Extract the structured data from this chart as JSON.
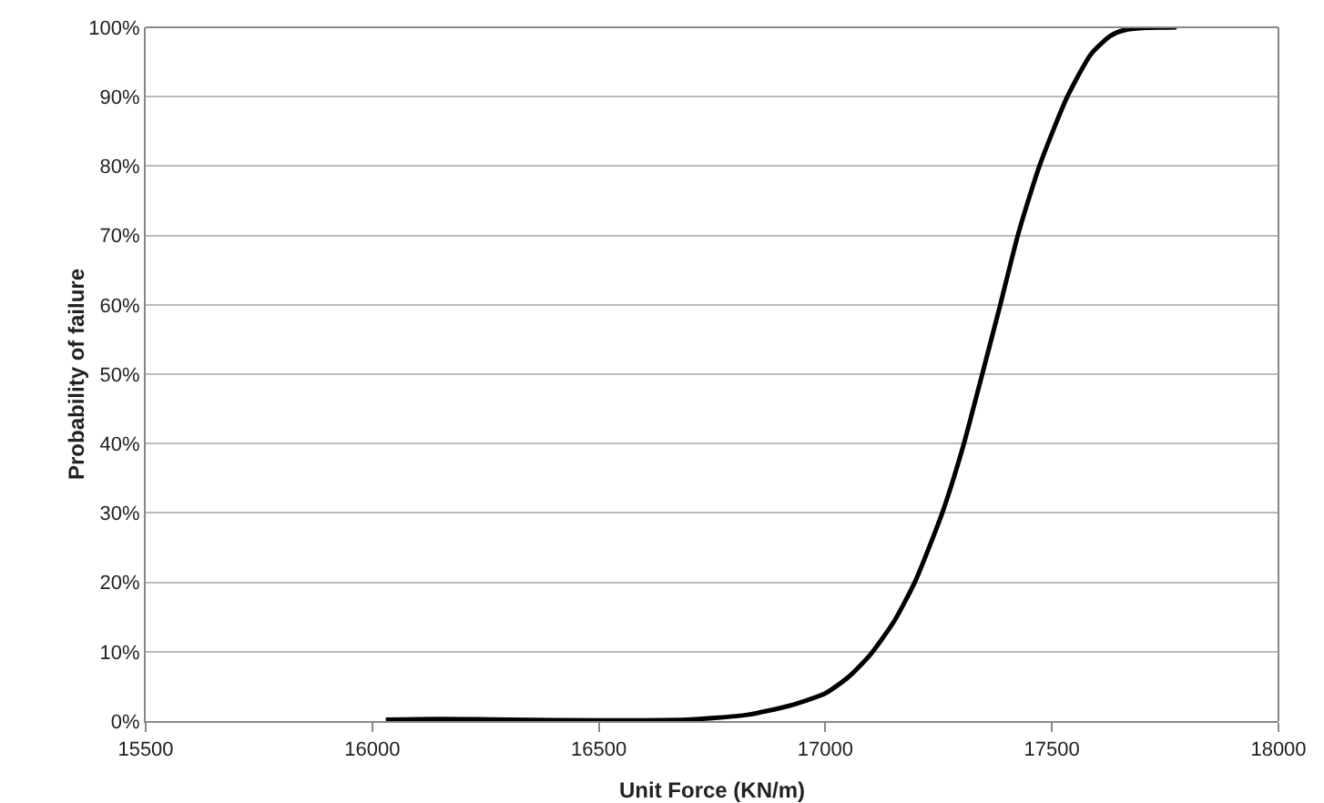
{
  "chart_data": {
    "type": "line",
    "xlabel": "Unit Force (KN/m)",
    "ylabel": "Probability of failure",
    "x": [
      16030,
      16150,
      16300,
      16500,
      16694,
      16828,
      16920,
      17000,
      17050,
      17097,
      17150,
      17198,
      17258,
      17305,
      17345,
      17386,
      17426,
      17473,
      17534,
      17587,
      17630,
      17661,
      17700,
      17775
    ],
    "series": [
      {
        "color": "#000000",
        "values": [
          0.2,
          0.3,
          0.2,
          0.1,
          0.2,
          0.9,
          2.2,
          4.0,
          6.3,
          9.4,
          14.2,
          20.1,
          30,
          39.8,
          49.7,
          60,
          70.3,
          80.1,
          90,
          96.2,
          98.8,
          99.6,
          99.9,
          100
        ]
      }
    ],
    "xlim": [
      15500,
      18000
    ],
    "xticks": [
      15500,
      16000,
      16500,
      17000,
      17500,
      18000
    ],
    "ylim": [
      0,
      100
    ],
    "yticks": [
      {
        "value": 0,
        "label": "0%"
      },
      {
        "value": 10,
        "label": "10%"
      },
      {
        "value": 20,
        "label": "20%"
      },
      {
        "value": 30,
        "label": "30%"
      },
      {
        "value": 40,
        "label": "40%"
      },
      {
        "value": 50,
        "label": "50%"
      },
      {
        "value": 60,
        "label": "60%"
      },
      {
        "value": 70,
        "label": "70%"
      },
      {
        "value": 80,
        "label": "80%"
      },
      {
        "value": 90,
        "label": "90%"
      },
      {
        "value": 100,
        "label": "100%"
      }
    ],
    "grid": "y",
    "marker": "none",
    "line_style": "solid"
  }
}
